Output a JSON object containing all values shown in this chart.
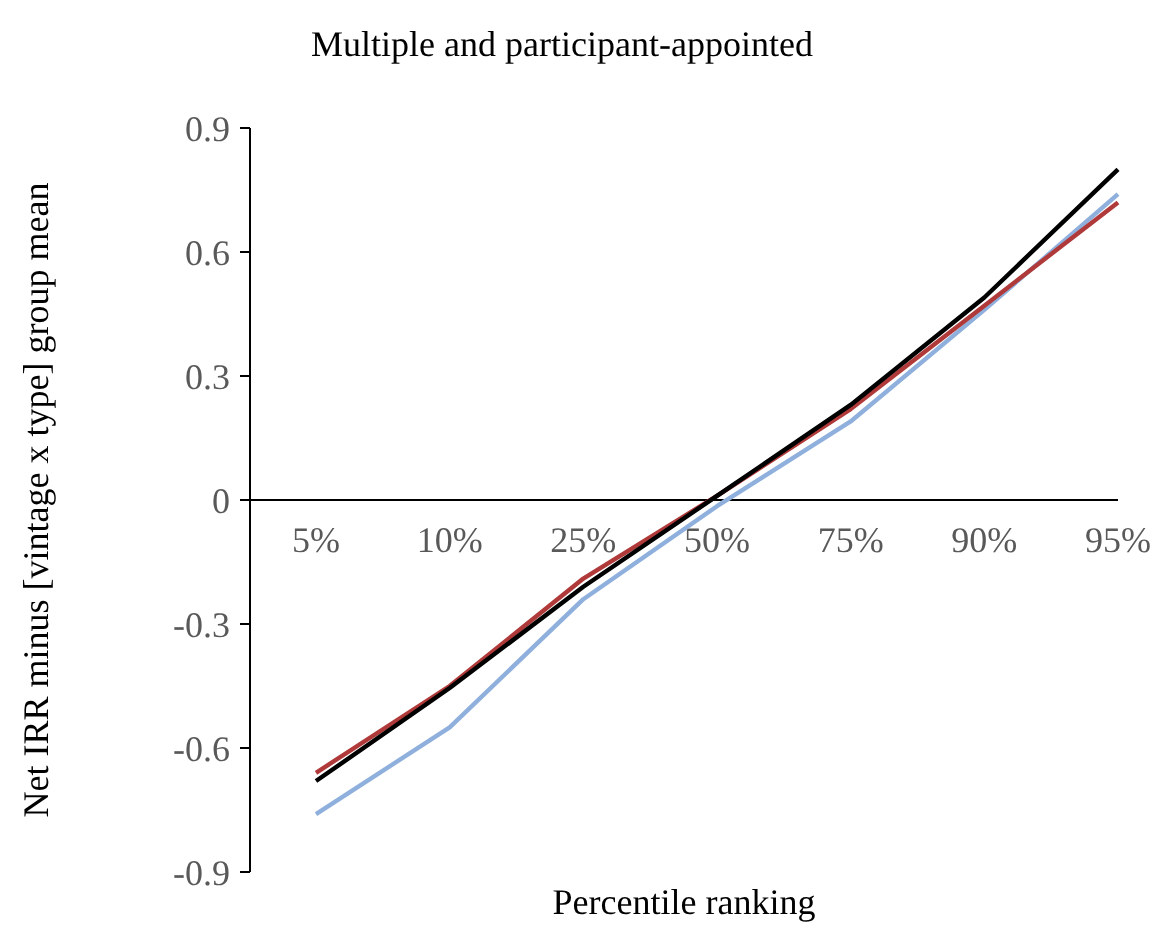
{
  "chart_data": {
    "type": "line",
    "title": "Multiple and participant-appointed",
    "xlabel": "Percentile ranking",
    "ylabel": "Net IRR minus [vintage x type] group mean",
    "categories": [
      "5%",
      "10%",
      "25%",
      "50%",
      "75%",
      "90%",
      "95%"
    ],
    "ylim": [
      -0.9,
      0.9
    ],
    "yticks": [
      {
        "value": -0.9,
        "label": "-0.9"
      },
      {
        "value": -0.6,
        "label": "-0.6"
      },
      {
        "value": -0.3,
        "label": "-0.3"
      },
      {
        "value": 0,
        "label": "0"
      },
      {
        "value": 0.3,
        "label": "0.3"
      },
      {
        "value": 0.6,
        "label": "0.6"
      },
      {
        "value": 0.9,
        "label": "0.9"
      }
    ],
    "marker": "none",
    "line_style": "solid",
    "series": [
      {
        "color": "#8fb0dc",
        "values": [
          -0.76,
          -0.55,
          -0.24,
          -0.015,
          0.19,
          0.46,
          0.74
        ]
      },
      {
        "color": "#b03a3a",
        "values": [
          -0.66,
          -0.45,
          -0.19,
          0.01,
          0.22,
          0.47,
          0.72
        ]
      },
      {
        "color": "#000000",
        "values": [
          -0.68,
          -0.455,
          -0.21,
          0.01,
          0.23,
          0.49,
          0.8
        ]
      }
    ]
  }
}
